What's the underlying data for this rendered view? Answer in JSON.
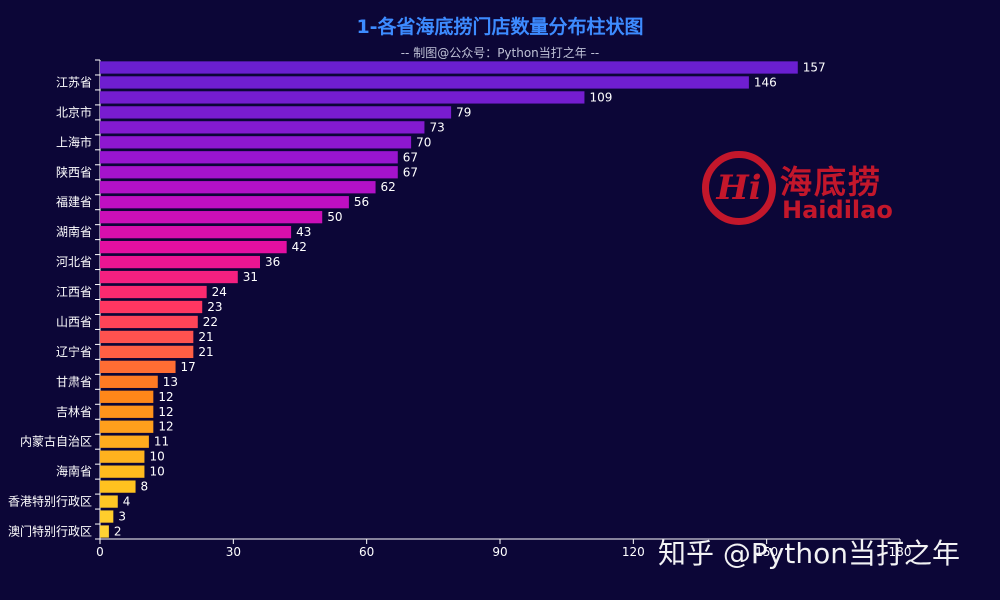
{
  "chart_data": {
    "type": "bar",
    "orientation": "horizontal",
    "title": "1-各省海底捞门店数量分布柱状图",
    "subtitle": "-- 制图@公众号：Python当打之年 --",
    "categories": [
      "",
      "江苏省",
      "",
      "北京市",
      "",
      "上海市",
      "",
      "陕西省",
      "",
      "福建省",
      "",
      "湖南省",
      "",
      "河北省",
      "",
      "江西省",
      "",
      "山西省",
      "",
      "辽宁省",
      "",
      "甘肃省",
      "",
      "吉林省",
      "",
      "内蒙古自治区",
      "",
      "海南省",
      "",
      "香港特别行政区",
      "",
      "澳门特别行政区"
    ],
    "values": [
      157,
      146,
      109,
      79,
      73,
      70,
      67,
      67,
      62,
      56,
      50,
      43,
      42,
      36,
      31,
      24,
      23,
      22,
      21,
      21,
      17,
      13,
      12,
      12,
      12,
      11,
      10,
      10,
      8,
      4,
      3,
      2
    ],
    "xticks": [
      "0",
      "30",
      "60",
      "90",
      "120",
      "150",
      "180"
    ],
    "xlim": [
      0,
      180
    ],
    "colors": [
      "#6a1fd0",
      "#7a1cd0",
      "#9a14d0",
      "#c30fc0",
      "#e80f9c",
      "#ff2f66",
      "#ff5a4a",
      "#ff8318",
      "#ffa91e",
      "#ffc11e",
      "#ffd233"
    ],
    "label_color": "#ffffff",
    "axis_color": "#ffffff"
  },
  "logo": {
    "mark": "Hi",
    "cn": "海底捞",
    "en": "Haidilao"
  },
  "watermark": "知乎 @Python当打之年"
}
